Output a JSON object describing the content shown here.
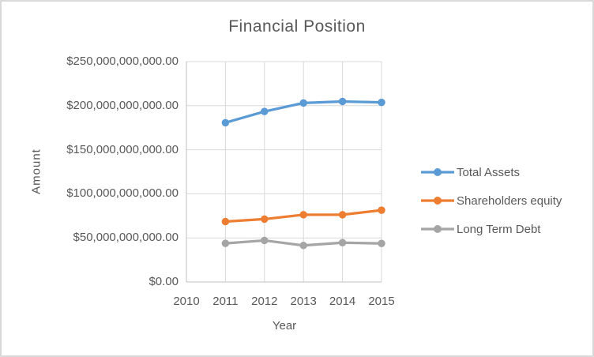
{
  "frame": {
    "background": "#FFFFFF",
    "border_color": "#D9D9D9"
  },
  "chart_data": {
    "type": "line",
    "title": "Financial Position",
    "xlabel": "Year",
    "ylabel": "Amount",
    "x": [
      2011,
      2012,
      2013,
      2014,
      2015
    ],
    "series": [
      {
        "name": "Total Assets",
        "color": "#5B9BD5",
        "values": [
          180700000000,
          193400000000,
          203100000000,
          204800000000,
          203700000000
        ]
      },
      {
        "name": "Shareholders equity",
        "color": "#ED7D31",
        "values": [
          68500000000,
          71300000000,
          76300000000,
          76300000000,
          81400000000
        ]
      },
      {
        "name": "Long Term Debt",
        "color": "#A5A5A5",
        "values": [
          43800000000,
          47100000000,
          41400000000,
          44600000000,
          43700000000
        ]
      }
    ],
    "xlim": [
      2010,
      2015
    ],
    "ylim": [
      0,
      250000000000
    ],
    "x_tick_labels": [
      "2010",
      "2011",
      "2012",
      "2013",
      "2014",
      "2015"
    ],
    "y_tick_labels": [
      "$0.00",
      "$50,000,000,000.00",
      "$100,000,000,000.00",
      "$150,000,000,000.00",
      "$200,000,000,000.00",
      "$250,000,000,000.00"
    ],
    "legend_position": "right",
    "grid": true,
    "styles": {
      "text_color": "#595959",
      "gridline_color": "#D9D9D9",
      "axis_line_color": "#BFBFBF",
      "line_width": 3.25,
      "marker_radius": 4.75
    }
  }
}
